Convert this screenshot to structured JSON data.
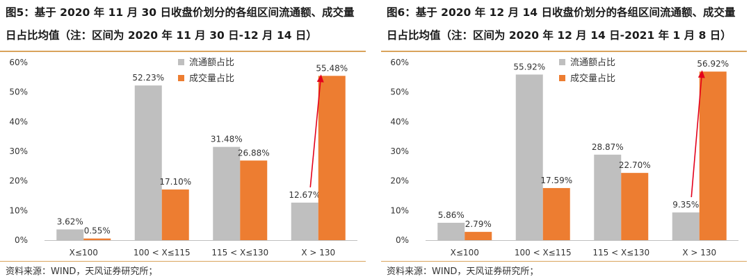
{
  "colors": {
    "gray": "#bfbfbf",
    "orange": "#ed7d31",
    "arrow": "#e3001b",
    "axis": "#bfbfbf",
    "rule": "#d9a35b"
  },
  "chart_data": [
    {
      "type": "bar",
      "title": "图5：基于 2020 年 11 月 30 日收盘价划分的各组区间流通额、成交量日占比均值（注：区间为 2020 年 11 月 30 日-12 月 14 日）",
      "categories": [
        "X≤100",
        "100 < X≤115",
        "115 < X≤130",
        "X > 130"
      ],
      "series": [
        {
          "name": "流通额占比",
          "color": "#bfbfbf",
          "values": [
            3.62,
            52.23,
            31.48,
            12.67
          ],
          "labels": [
            "3.62%",
            "52.23%",
            "31.48%",
            "12.67%"
          ]
        },
        {
          "name": "成交量占比",
          "color": "#ed7d31",
          "values": [
            0.55,
            17.1,
            26.88,
            55.48
          ],
          "labels": [
            "0.55%",
            "17.10%",
            "26.88%",
            "55.48%"
          ]
        }
      ],
      "yticks": [
        "0%",
        "10%",
        "20%",
        "30%",
        "40%",
        "50%",
        "60%"
      ],
      "ylim": [
        0,
        60
      ],
      "legend": "top-right",
      "annotation": "red arrow from 12.67% label to 55.48% bar",
      "source": "资料来源：WIND，天风证券研究所；"
    },
    {
      "type": "bar",
      "title": "图6：基于 2020 年 12 月 14 日收盘价划分的各组区间流通额、成交量日占比均值（注：区间为 2020 年 12 月 14 日-2021 年 1 月 8 日）",
      "categories": [
        "X≤100",
        "100 < X≤115",
        "115 < X≤130",
        "X > 130"
      ],
      "series": [
        {
          "name": "流通额占比",
          "color": "#bfbfbf",
          "values": [
            5.86,
            55.92,
            28.87,
            9.35
          ],
          "labels": [
            "5.86%",
            "55.92%",
            "28.87%",
            "9.35%"
          ]
        },
        {
          "name": "成交量占比",
          "color": "#ed7d31",
          "values": [
            2.79,
            17.59,
            22.7,
            56.92
          ],
          "labels": [
            "2.79%",
            "17.59%",
            "22.70%",
            "56.92%"
          ]
        }
      ],
      "yticks": [
        "0%",
        "10%",
        "20%",
        "30%",
        "40%",
        "50%",
        "60%"
      ],
      "ylim": [
        0,
        60
      ],
      "legend": "top-right",
      "annotation": "red arrow from 9.35% label to 56.92% bar",
      "source": "资料来源：WIND，天风证券研究所；"
    }
  ]
}
